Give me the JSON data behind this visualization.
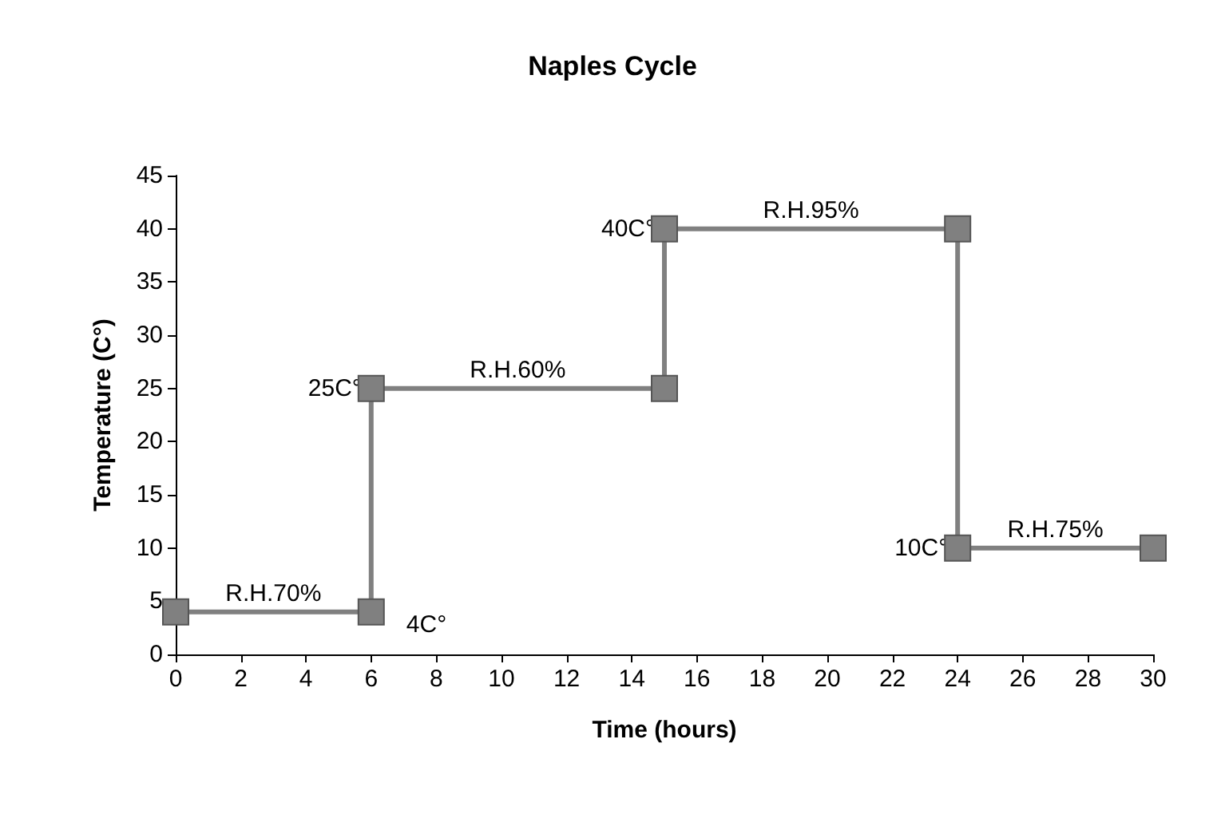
{
  "chart_data": {
    "type": "line",
    "title": "Naples Cycle",
    "xlabel": "Time (hours)",
    "ylabel": "Temperature (C°)",
    "x": [
      0,
      6,
      6,
      15,
      15,
      24,
      24,
      30
    ],
    "series": [
      {
        "color": "#808080",
        "values": [
          4,
          4,
          25,
          25,
          40,
          40,
          10,
          10
        ]
      }
    ],
    "xlim": [
      0,
      30
    ],
    "xticks": [
      0,
      2,
      4,
      6,
      8,
      10,
      12,
      14,
      16,
      18,
      20,
      22,
      24,
      26,
      28,
      30
    ],
    "ylim": [
      0,
      45
    ],
    "yticks": [
      0,
      5,
      10,
      15,
      20,
      25,
      30,
      35,
      40,
      45
    ],
    "grid": false,
    "marker": "square",
    "line_style": "solid",
    "annotations": [
      {
        "text": "R.H.70%",
        "x": 3,
        "y": 4
      },
      {
        "text": "4C°",
        "x": 6,
        "y": 4
      },
      {
        "text": "25C°",
        "x": 6,
        "y": 25
      },
      {
        "text": "R.H.60%",
        "x": 10.5,
        "y": 25
      },
      {
        "text": "40C°",
        "x": 15,
        "y": 40
      },
      {
        "text": "R.H.95%",
        "x": 19.5,
        "y": 40
      },
      {
        "text": "10C°",
        "x": 24,
        "y": 10
      },
      {
        "text": "R.H.75%",
        "x": 27,
        "y": 10
      }
    ]
  }
}
